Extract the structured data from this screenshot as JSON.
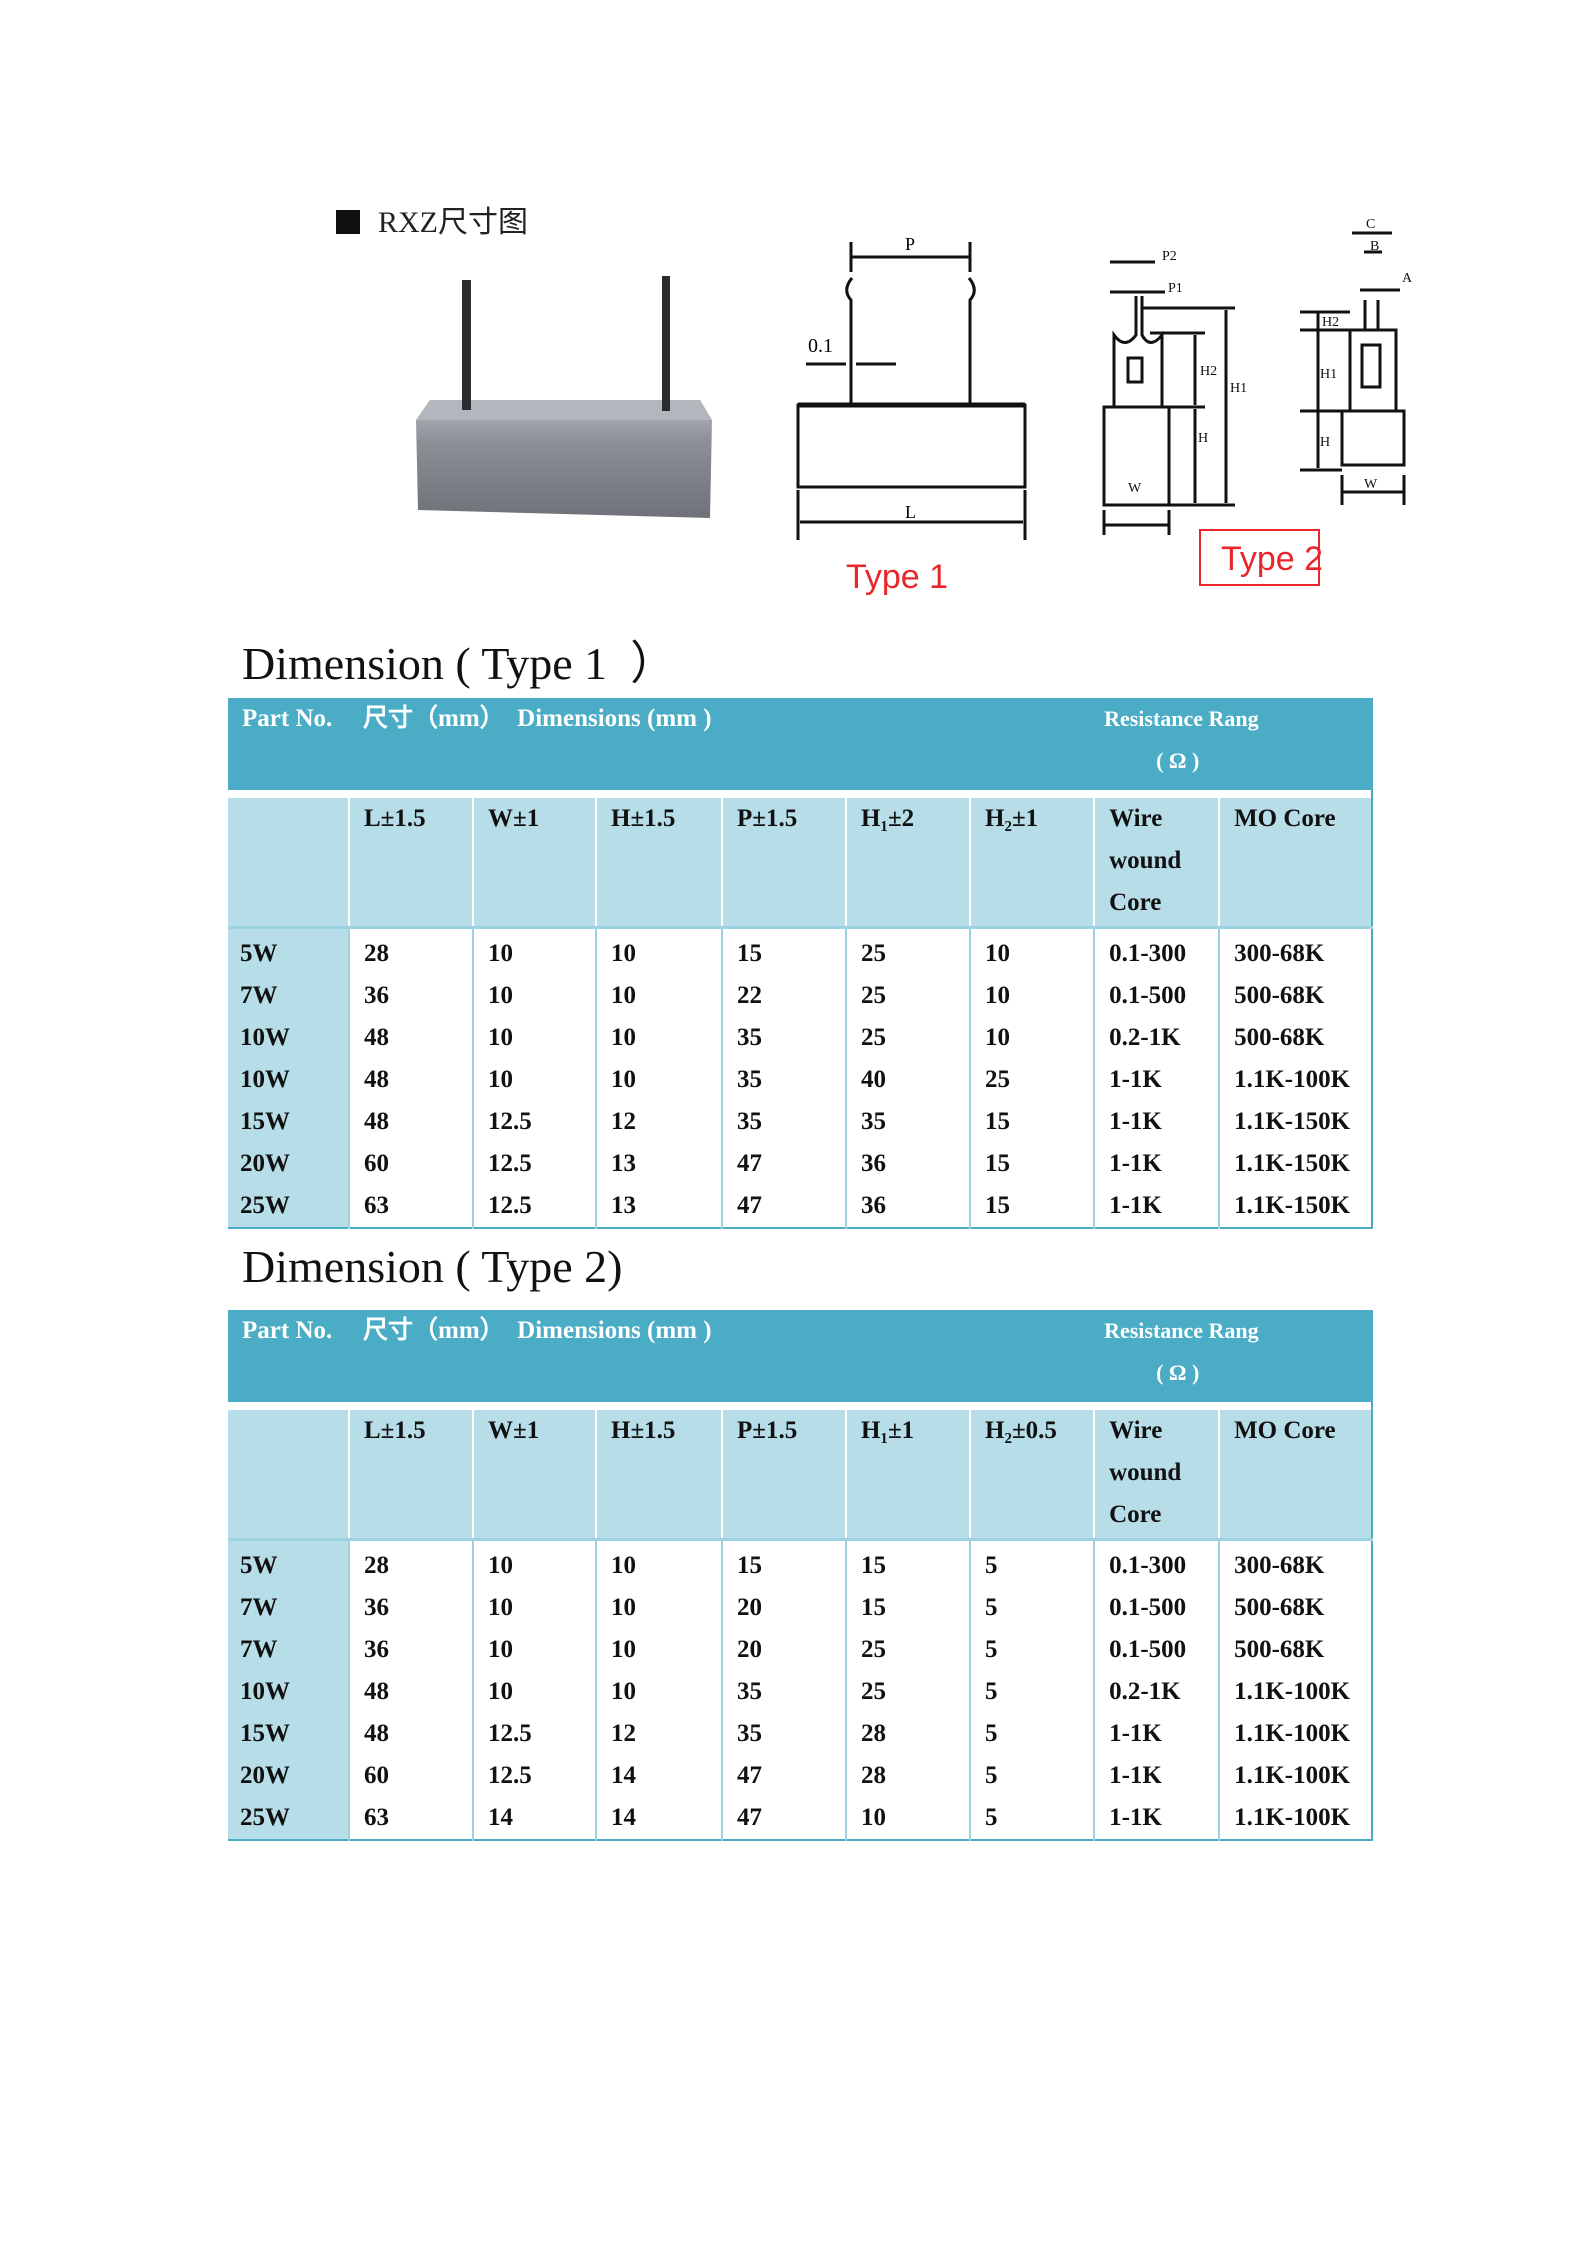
{
  "figure": {
    "heading": "RXZ尺寸图",
    "type1_label": "Type 1",
    "type2_label": "Type 2",
    "dim_labels": {
      "p": "P",
      "l": "L",
      "gap": "0.1",
      "p1": "P1",
      "p2": "P2",
      "h": "H",
      "h1": "H1",
      "h2": "H2",
      "w": "W",
      "a": "A",
      "b": "B",
      "c": "C"
    },
    "colors": {
      "label_red": "#E8262B",
      "drawing": "#111111"
    }
  },
  "tables": [
    {
      "title": "Dimension ( Type 1  ）",
      "header": {
        "part_no": "Part No.",
        "dimensions": "尺寸（mm）  Dimensions (mm )",
        "resistance": "Resistance Rang",
        "resistance_unit": "( Ω )"
      },
      "columns": [
        "L±1.5",
        "W±1",
        "H±1.5",
        "P±1.5",
        "H₁±2",
        "H₂±1",
        "Wire wound Core",
        "MO Core"
      ],
      "rows": [
        [
          "5W",
          "28",
          "10",
          "10",
          "15",
          "25",
          "10",
          "0.1-300",
          "300-68K"
        ],
        [
          "7W",
          "36",
          "10",
          "10",
          "22",
          "25",
          "10",
          "0.1-500",
          "500-68K"
        ],
        [
          "10W",
          "48",
          "10",
          "10",
          "35",
          "25",
          "10",
          "0.2-1K",
          "500-68K"
        ],
        [
          "10W",
          "48",
          "10",
          "10",
          "35",
          "40",
          "25",
          "1-1K",
          "1.1K-100K"
        ],
        [
          "15W",
          "48",
          "12.5",
          "12",
          "35",
          "35",
          "15",
          "1-1K",
          "1.1K-150K"
        ],
        [
          "20W",
          "60",
          "12.5",
          "13",
          "47",
          "36",
          "15",
          "1-1K",
          "1.1K-150K"
        ],
        [
          "25W",
          "63",
          "12.5",
          "13",
          "47",
          "36",
          "15",
          "1-1K",
          "1.1K-150K"
        ]
      ]
    },
    {
      "title": "Dimension ( Type 2)",
      "header": {
        "part_no": "Part No.",
        "dimensions": "尺寸（mm）  Dimensions (mm )",
        "resistance": "Resistance Rang",
        "resistance_unit": "( Ω )"
      },
      "columns": [
        "L±1.5",
        "W±1",
        "H±1.5",
        "P±1.5",
        "H₁±1",
        "H₂±0.5",
        "Wire wound Core",
        "MO Core"
      ],
      "rows": [
        [
          "5W",
          "28",
          "10",
          "10",
          "15",
          "15",
          "5",
          "0.1-300",
          "300-68K"
        ],
        [
          "7W",
          "36",
          "10",
          "10",
          "20",
          "15",
          "5",
          "0.1-500",
          "500-68K"
        ],
        [
          "7W",
          "36",
          "10",
          "10",
          "20",
          "25",
          "5",
          "0.1-500",
          "500-68K"
        ],
        [
          "10W",
          "48",
          "10",
          "10",
          "35",
          "25",
          "5",
          "0.2-1K",
          "1.1K-100K"
        ],
        [
          "15W",
          "48",
          "12.5",
          "12",
          "35",
          "28",
          "5",
          "1-1K",
          "1.1K-100K"
        ],
        [
          "20W",
          "60",
          "12.5",
          "14",
          "47",
          "28",
          "5",
          "1-1K",
          "1.1K-100K"
        ],
        [
          "25W",
          "63",
          "14",
          "14",
          "47",
          "10",
          "5",
          "1-1K",
          "1.1K-100K"
        ]
      ]
    }
  ]
}
